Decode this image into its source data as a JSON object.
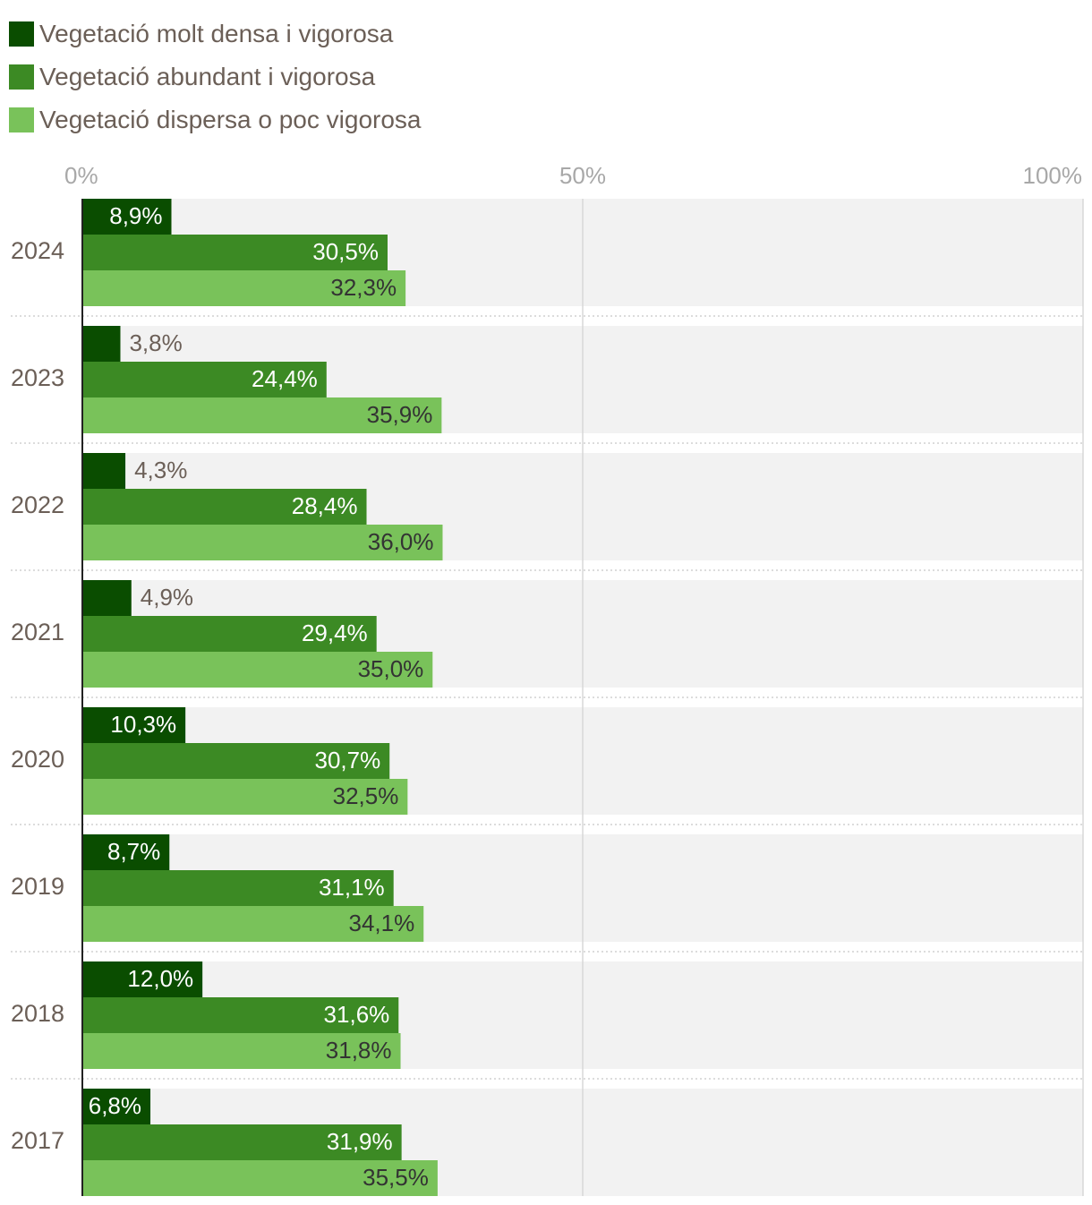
{
  "chart_data": {
    "type": "bar",
    "orientation": "horizontal",
    "categories": [
      "2024",
      "2023",
      "2022",
      "2021",
      "2020",
      "2019",
      "2018",
      "2017"
    ],
    "series": [
      {
        "name": "Vegetació molt densa i vigorosa",
        "color": "#0a4d00",
        "values": [
          8.9,
          3.8,
          4.3,
          4.9,
          10.3,
          8.7,
          12.0,
          6.8
        ],
        "labels": [
          "8,9%",
          "3,8%",
          "4,3%",
          "4,9%",
          "10,3%",
          "8,7%",
          "12,0%",
          "6,8%"
        ]
      },
      {
        "name": "Vegetació abundant i vigorosa",
        "color": "#3c8a24",
        "values": [
          30.5,
          24.4,
          28.4,
          29.4,
          30.7,
          31.1,
          31.6,
          31.9
        ],
        "labels": [
          "30,5%",
          "24,4%",
          "28,4%",
          "29,4%",
          "30,7%",
          "31,1%",
          "31,6%",
          "31,9%"
        ]
      },
      {
        "name": "Vegetació dispersa o poc vigorosa",
        "color": "#79c25a",
        "values": [
          32.3,
          35.9,
          36.0,
          35.0,
          32.5,
          34.1,
          31.8,
          35.5
        ],
        "labels": [
          "32,3%",
          "35,9%",
          "36,0%",
          "35,0%",
          "32,5%",
          "34,1%",
          "31,8%",
          "35,5%"
        ]
      }
    ],
    "xlim": [
      0,
      100
    ],
    "ticks": [
      0,
      50,
      100
    ],
    "tick_labels": [
      "0%",
      "50%",
      "100%"
    ],
    "legend_position": "top-left",
    "grid": true,
    "title": "",
    "xlabel": "",
    "ylabel": ""
  }
}
